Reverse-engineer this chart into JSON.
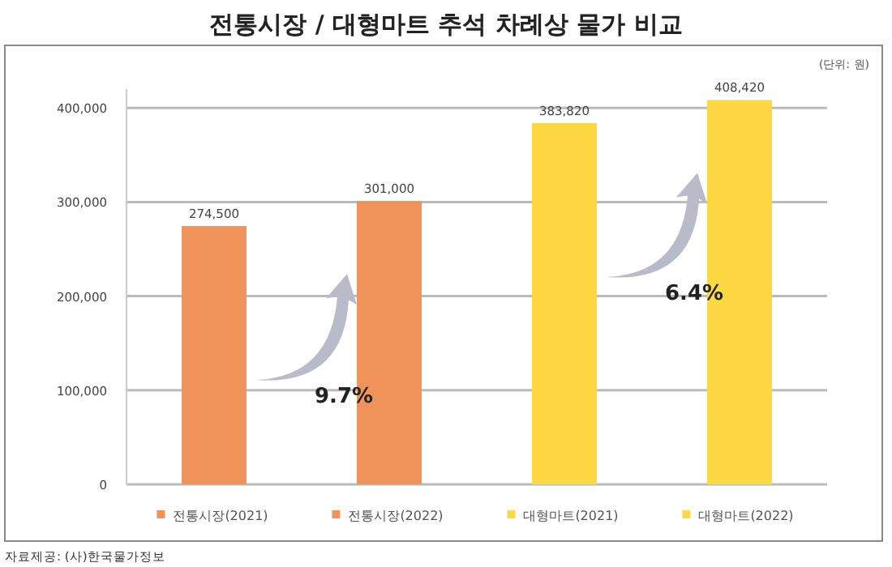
{
  "chart_data": {
    "type": "bar",
    "title": "전통시장 / 대형마트 추석 차례상 물가 비교",
    "categories": [
      "전통시장(2021)",
      "전통시장(2022)",
      "대형마트(2021)",
      "대형마트(2022)"
    ],
    "values": [
      274500,
      301000,
      383820,
      408420
    ],
    "colors": [
      "#f0935a",
      "#f0935a",
      "#fdd843",
      "#fdd843"
    ],
    "value_labels": [
      "274,500",
      "301,000",
      "383,820",
      "408,420"
    ],
    "ylim": [
      0,
      420000
    ],
    "yticks": [
      {
        "value": 0,
        "label": "0"
      },
      {
        "value": 100000,
        "label": "100,000"
      },
      {
        "value": 200000,
        "label": "200,000"
      },
      {
        "value": 300000,
        "label": "300,000"
      },
      {
        "value": 400000,
        "label": "400,000"
      }
    ],
    "grid": "y",
    "annotations": [
      "(단위: 원)",
      "9.7%",
      "6.4%",
      "자료제공: (사)한국물가정보"
    ]
  }
}
